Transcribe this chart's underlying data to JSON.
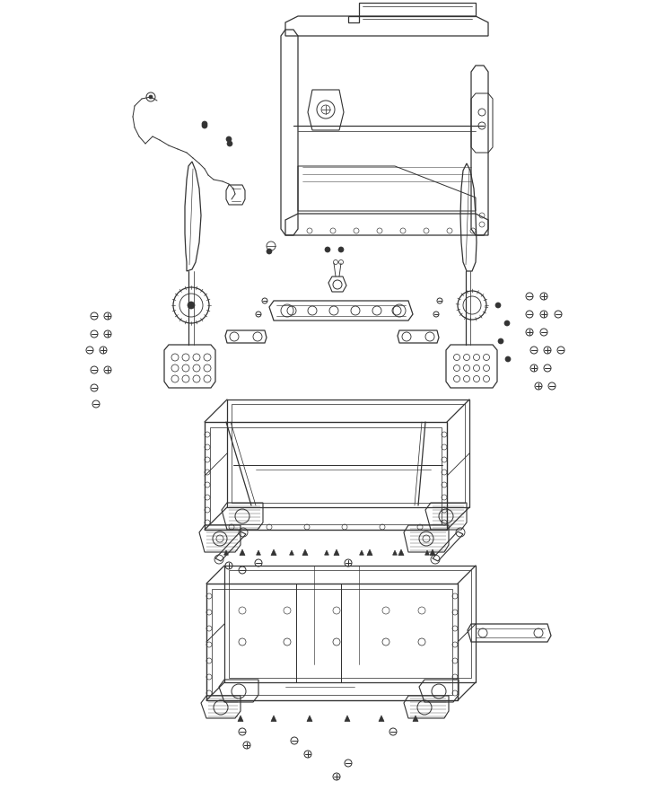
{
  "background_color": "#ffffff",
  "line_color": "#333333",
  "line_width": 0.9,
  "fig_width": 7.41,
  "fig_height": 9.0,
  "dpi": 100,
  "xlim": [
    0,
    741
  ],
  "ylim": [
    0,
    900
  ]
}
